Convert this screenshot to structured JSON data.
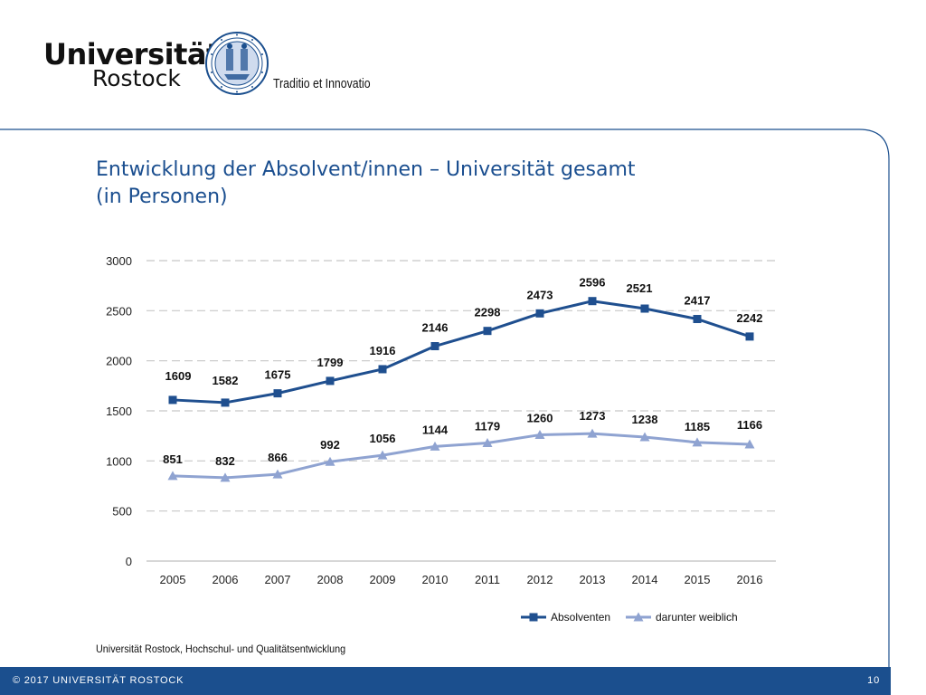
{
  "header": {
    "logo_line1": "Universität",
    "logo_line2": "Rostock",
    "motto": "Traditio et Innovatio",
    "seal_icon": "university-seal-icon"
  },
  "slide": {
    "title_line1": "Entwicklung der Absolvent/innen – Universität gesamt",
    "title_line2": "(in Personen)",
    "source": "Universität Rostock, Hochschul- und Qualitätsentwicklung"
  },
  "footer": {
    "copyright": "© 2017 UNIVERSITÄT ROSTOCK",
    "page_number": "10"
  },
  "colors": {
    "brand_blue": "#1b4f8e",
    "title_blue": "#1a4e8f",
    "series_dark": "#1f4f8f",
    "series_light": "#8fa3d1"
  },
  "chart_data": {
    "type": "line",
    "x": [
      "2005",
      "2006",
      "2007",
      "2008",
      "2009",
      "2010",
      "2011",
      "2012",
      "2013",
      "2014",
      "2015",
      "2016"
    ],
    "series": [
      {
        "name": "Absolventen",
        "values": [
          1609,
          1582,
          1675,
          1799,
          1916,
          2146,
          2298,
          2473,
          2596,
          2521,
          2417,
          2242
        ],
        "color": "#1f4f8f",
        "marker": "square"
      },
      {
        "name": "darunter weiblich",
        "values": [
          851,
          832,
          866,
          992,
          1056,
          1144,
          1179,
          1260,
          1273,
          1238,
          1185,
          1166
        ],
        "color": "#8fa3d1",
        "marker": "triangle"
      }
    ],
    "yticks": [
      "0",
      "500",
      "1000",
      "1500",
      "2000",
      "2500",
      "3000"
    ],
    "ylim": [
      0,
      3000
    ],
    "grid": "horizontal dashed",
    "legend_position": "bottom-right"
  }
}
